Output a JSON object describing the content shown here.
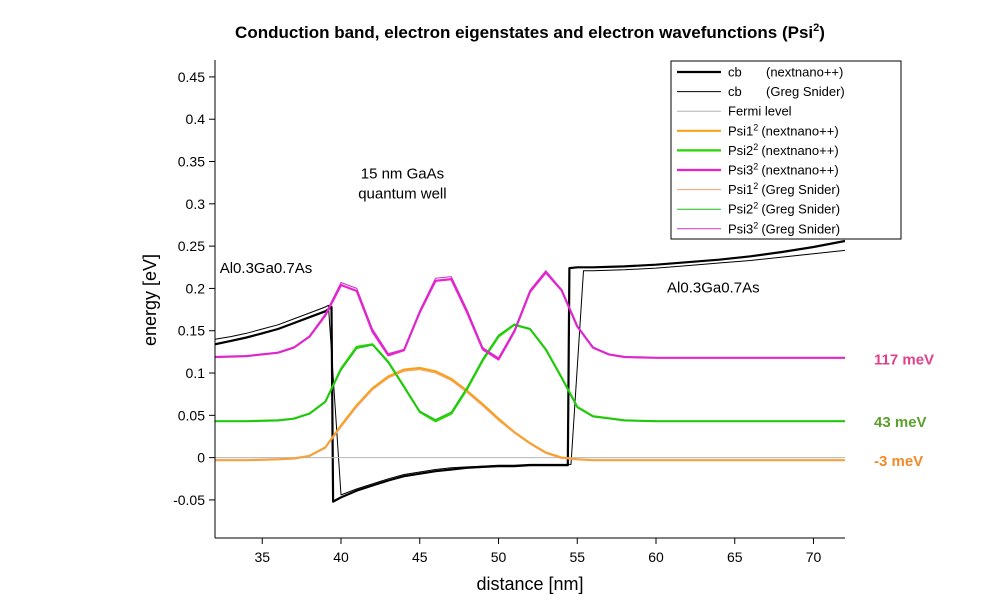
{
  "chart_data": {
    "type": "line",
    "title": "Conduction band, electron eigenstates and electron wavefunctions (Psi",
    "title_sup": "2",
    "title_end": ")",
    "xlabel": "distance [nm]",
    "ylabel": "energy [eV]",
    "xlim": [
      32,
      72
    ],
    "ylim": [
      -0.095,
      0.47
    ],
    "xticks": [
      35,
      40,
      45,
      50,
      55,
      60,
      65,
      70
    ],
    "yticks": [
      -0.05,
      0,
      0.05,
      0.1,
      0.15,
      0.2,
      0.25,
      0.3,
      0.35,
      0.4,
      0.45
    ],
    "ytick_labels": [
      "-0.05",
      "0",
      "0.05",
      "0.1",
      "0.15",
      "0.2",
      "0.25",
      "0.3",
      "0.35",
      "0.4",
      "0.45"
    ],
    "grid": false,
    "legend_position": "top-right",
    "annotations": [
      {
        "id": "well",
        "lines": [
          "15 nm GaAs",
          "quantum well"
        ],
        "x": 43.9,
        "y": 0.33
      },
      {
        "id": "barrier-left",
        "lines": [
          "Al0.3Ga0.7As"
        ],
        "x": 32.3,
        "y": 0.218
      },
      {
        "id": "barrier-right",
        "lines": [
          "Al0.3Ga0.7As"
        ],
        "x": 60.7,
        "y": 0.195
      }
    ],
    "level_labels": [
      {
        "text": "117 meV",
        "value": 0.117,
        "color": "#e0408a"
      },
      {
        "text": "43 meV",
        "value": 0.043,
        "color": "#5aa02c"
      },
      {
        "text": "-3 meV",
        "value": -0.003,
        "color": "#f08a2a"
      }
    ],
    "series": [
      {
        "name": "cb",
        "source": "(nextnano++)",
        "color": "#000000",
        "width": 2.2,
        "x": [
          32,
          33,
          34,
          35,
          36,
          37,
          38,
          39,
          39.4,
          39.5,
          40,
          41,
          42,
          43,
          44,
          45,
          46,
          47,
          48,
          49,
          50,
          51,
          52,
          53,
          54,
          54.4,
          54.5,
          55,
          56,
          58,
          60,
          62,
          64,
          66,
          68,
          70,
          72
        ],
        "y": [
          0.134,
          0.138,
          0.142,
          0.147,
          0.152,
          0.159,
          0.166,
          0.173,
          0.178,
          -0.052,
          -0.047,
          -0.039,
          -0.033,
          -0.027,
          -0.022,
          -0.019,
          -0.016,
          -0.014,
          -0.012,
          -0.011,
          -0.01,
          -0.01,
          -0.009,
          -0.009,
          -0.009,
          -0.009,
          0.224,
          0.225,
          0.225,
          0.226,
          0.228,
          0.231,
          0.234,
          0.238,
          0.243,
          0.249,
          0.256
        ]
      },
      {
        "name": "cb",
        "source": "(Greg Snider)",
        "color": "#000000",
        "width": 1,
        "x": [
          32,
          33,
          34,
          35,
          36,
          37,
          38,
          39,
          39.2,
          40,
          41,
          42,
          43,
          44,
          45,
          46,
          47,
          48,
          49,
          50,
          51,
          52,
          53,
          54,
          54.6,
          55.4,
          56,
          58,
          60,
          62,
          64,
          66,
          68,
          70,
          72
        ],
        "y": [
          0.14,
          0.143,
          0.147,
          0.152,
          0.157,
          0.164,
          0.171,
          0.178,
          0.18,
          -0.044,
          -0.037,
          -0.031,
          -0.025,
          -0.02,
          -0.017,
          -0.014,
          -0.012,
          -0.011,
          -0.01,
          -0.009,
          -0.009,
          -0.008,
          -0.008,
          -0.008,
          -0.008,
          0.221,
          0.221,
          0.222,
          0.224,
          0.227,
          0.23,
          0.233,
          0.237,
          0.241,
          0.245
        ]
      },
      {
        "name": "Fermi level",
        "source": "",
        "color": "#b4b4b4",
        "width": 1,
        "x": [
          32,
          72
        ],
        "y": [
          0,
          0
        ]
      },
      {
        "name": "Psi1",
        "sup": "2",
        "source": "(nextnano++)",
        "color": "#f7a21b",
        "width": 2.2,
        "x": [
          32,
          34,
          36,
          37,
          38,
          39,
          40,
          41,
          42,
          43,
          44,
          45,
          46,
          47,
          48,
          49,
          50,
          51,
          52,
          53,
          54,
          55,
          56,
          58,
          60,
          65,
          72
        ],
        "y": [
          -0.003,
          -0.003,
          -0.002,
          -0.001,
          0.002,
          0.012,
          0.038,
          0.062,
          0.082,
          0.096,
          0.104,
          0.106,
          0.102,
          0.093,
          0.079,
          0.063,
          0.046,
          0.03,
          0.017,
          0.006,
          0.0,
          -0.002,
          -0.003,
          -0.003,
          -0.003,
          -0.003,
          -0.003
        ]
      },
      {
        "name": "Psi2",
        "sup": "2",
        "source": "(nextnano++)",
        "color": "#27d400",
        "width": 2.2,
        "x": [
          32,
          34,
          36,
          37,
          38,
          39,
          40,
          41,
          42,
          43,
          44,
          45,
          46,
          47,
          48,
          49,
          50,
          51,
          52,
          53,
          54,
          55,
          56,
          58,
          60,
          65,
          72
        ],
        "y": [
          0.043,
          0.043,
          0.044,
          0.046,
          0.052,
          0.066,
          0.105,
          0.131,
          0.134,
          0.113,
          0.084,
          0.054,
          0.043,
          0.052,
          0.081,
          0.115,
          0.143,
          0.157,
          0.152,
          0.128,
          0.095,
          0.06,
          0.049,
          0.044,
          0.043,
          0.043,
          0.043
        ]
      },
      {
        "name": "Psi3",
        "sup": "2",
        "source": "(nextnano++)",
        "color": "#ee1fd0",
        "width": 2.2,
        "x": [
          32,
          34,
          36,
          37,
          38,
          39,
          40,
          41,
          42,
          43,
          44,
          45,
          46,
          47,
          48,
          49,
          50,
          51,
          52,
          53,
          54,
          55,
          56,
          57,
          58,
          60,
          65,
          72
        ],
        "y": [
          0.119,
          0.12,
          0.124,
          0.13,
          0.143,
          0.168,
          0.204,
          0.197,
          0.149,
          0.121,
          0.127,
          0.172,
          0.209,
          0.211,
          0.172,
          0.128,
          0.116,
          0.149,
          0.196,
          0.219,
          0.198,
          0.155,
          0.13,
          0.122,
          0.119,
          0.118,
          0.118,
          0.118
        ]
      },
      {
        "name": "Psi1",
        "sup": "2",
        "source": "(Greg Snider)",
        "color": "#f5a06a",
        "width": 1,
        "x": [
          32,
          34,
          36,
          37,
          38,
          39,
          40,
          41,
          42,
          43,
          44,
          45,
          46,
          47,
          48,
          49,
          50,
          51,
          52,
          53,
          54,
          55,
          56,
          58,
          60,
          65,
          72
        ],
        "y": [
          -0.003,
          -0.003,
          -0.002,
          -0.001,
          0.002,
          0.011,
          0.036,
          0.06,
          0.08,
          0.094,
          0.102,
          0.104,
          0.1,
          0.091,
          0.077,
          0.061,
          0.044,
          0.029,
          0.016,
          0.005,
          -0.001,
          -0.002,
          -0.003,
          -0.003,
          -0.003,
          -0.003,
          -0.003
        ]
      },
      {
        "name": "Psi2",
        "sup": "2",
        "source": "(Greg Snider)",
        "color": "#1ebe1e",
        "width": 1,
        "x": [
          32,
          34,
          36,
          37,
          38,
          39,
          40,
          41,
          42,
          43,
          44,
          45,
          46,
          47,
          48,
          49,
          50,
          51,
          52,
          53,
          54,
          55,
          56,
          58,
          60,
          65,
          72
        ],
        "y": [
          0.043,
          0.043,
          0.044,
          0.046,
          0.052,
          0.066,
          0.103,
          0.129,
          0.133,
          0.112,
          0.083,
          0.055,
          0.045,
          0.054,
          0.083,
          0.117,
          0.145,
          0.158,
          0.152,
          0.127,
          0.094,
          0.059,
          0.048,
          0.044,
          0.043,
          0.043,
          0.043
        ]
      },
      {
        "name": "Psi3",
        "sup": "2",
        "source": "(Greg Snider)",
        "color": "#c832c8",
        "width": 1,
        "x": [
          32,
          34,
          36,
          37,
          38,
          39,
          40,
          41,
          42,
          43,
          44,
          45,
          46,
          47,
          48,
          49,
          50,
          51,
          52,
          53,
          54,
          55,
          56,
          57,
          58,
          60,
          65,
          72
        ],
        "y": [
          0.119,
          0.12,
          0.124,
          0.13,
          0.144,
          0.17,
          0.207,
          0.2,
          0.152,
          0.123,
          0.128,
          0.174,
          0.212,
          0.214,
          0.175,
          0.13,
          0.118,
          0.151,
          0.198,
          0.221,
          0.199,
          0.156,
          0.131,
          0.122,
          0.119,
          0.118,
          0.118,
          0.118
        ]
      }
    ]
  }
}
